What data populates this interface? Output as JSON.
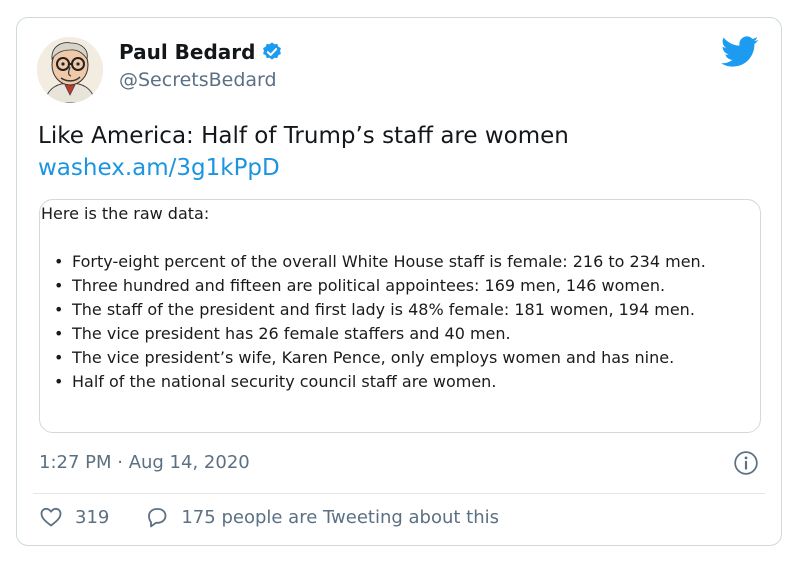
{
  "colors": {
    "accent": "#1b95e0",
    "text": "#14171a",
    "muted": "#5b7083",
    "border": "#cfd9de"
  },
  "author": {
    "name": "Paul Bedard",
    "handle": "@SecretsBedard",
    "verified": true,
    "avatar_icon": "caricature-avatar"
  },
  "tweet": {
    "text": "Like America: Half of Trump’s staff are women",
    "link": "washex.am/3g1kPpD"
  },
  "embed": {
    "intro": "Here is the raw data:",
    "points": [
      "Forty-eight percent of the overall White House staff is female: 216 to 234 men.",
      "Three hundred and fifteen are political appointees: 169 men, 146 women.",
      "The staff of the president and first lady is 48% female: 181 women, 194 men.",
      "The vice president has 26 female staffers and 40 men.",
      "The vice president’s wife, Karen Pence, only employs women and has nine.",
      "Half of the national security council staff are women."
    ]
  },
  "meta": {
    "timestamp": "1:27 PM · Aug 14, 2020"
  },
  "actions": {
    "likes": "319",
    "tweeting": "175 people are Tweeting about this"
  },
  "icons": [
    "twitter-bird-icon",
    "verified-badge-icon",
    "info-icon",
    "heart-icon",
    "reply-bubble-icon"
  ]
}
